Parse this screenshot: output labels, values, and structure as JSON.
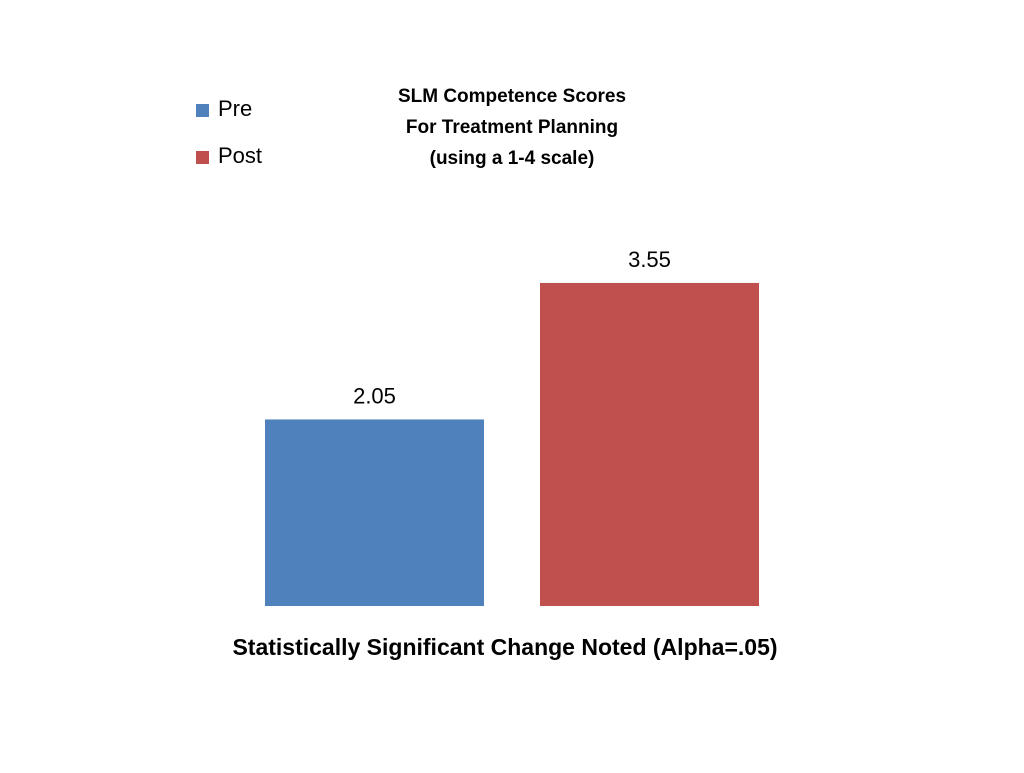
{
  "chart_data": {
    "type": "bar",
    "title": [
      "SLM Competence Scores",
      "For Treatment Planning",
      "(using a 1-4 scale)"
    ],
    "annotation": "Statistically Significant Change Noted (Alpha=.05)",
    "categories": [
      null
    ],
    "series": [
      {
        "name": "Pre",
        "color": "#4f81bd",
        "values": [
          2.05
        ]
      },
      {
        "name": "Post",
        "color": "#c0504d",
        "values": [
          3.55
        ]
      }
    ],
    "ylim": [
      0,
      4
    ],
    "legend": "top-left"
  }
}
